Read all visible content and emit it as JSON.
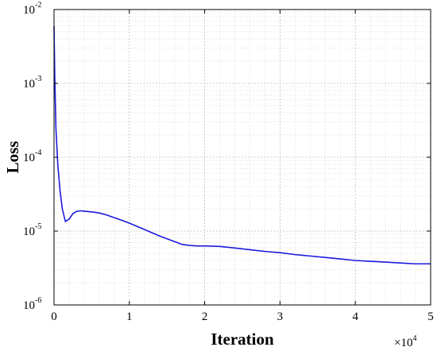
{
  "chart_data": {
    "type": "line",
    "title": "",
    "xlabel": "Iteration",
    "ylabel": "Loss",
    "x_multiplier_label": "×10",
    "x_multiplier_exponent": "4",
    "xlim": [
      0,
      50000
    ],
    "ylim": [
      1e-06,
      0.01
    ],
    "yscale": "log",
    "grid": true,
    "minor_grid": true,
    "line_color": "#1a1adc",
    "x_ticks": [
      {
        "value": 0,
        "label": "0"
      },
      {
        "value": 10000,
        "label": "1"
      },
      {
        "value": 20000,
        "label": "2"
      },
      {
        "value": 30000,
        "label": "3"
      },
      {
        "value": 40000,
        "label": "4"
      },
      {
        "value": 50000,
        "label": "5"
      }
    ],
    "y_ticks": [
      {
        "value": 1e-06,
        "base": "10",
        "exp": "-6"
      },
      {
        "value": 1e-05,
        "base": "10",
        "exp": "-5"
      },
      {
        "value": 0.0001,
        "base": "10",
        "exp": "-4"
      },
      {
        "value": 0.001,
        "base": "10",
        "exp": "-3"
      },
      {
        "value": 0.01,
        "base": "10",
        "exp": "-2"
      }
    ],
    "series": [
      {
        "x": [
          0,
          100,
          250,
          500,
          800,
          1100,
          1500,
          2000,
          2500,
          3000,
          3500,
          4000,
          5000,
          6000,
          7000,
          8000,
          9000,
          10000,
          12000,
          14000,
          16000,
          17000,
          18000,
          19000,
          20000,
          22000,
          24000,
          26000,
          28000,
          30000,
          32000,
          34000,
          36000,
          38000,
          40000,
          42000,
          44000,
          46000,
          48000,
          50000
        ],
        "y": [
          0.006,
          0.0012,
          0.00025,
          8e-05,
          3.5e-05,
          2e-05,
          1.35e-05,
          1.45e-05,
          1.72e-05,
          1.85e-05,
          1.88e-05,
          1.86e-05,
          1.82e-05,
          1.76e-05,
          1.65e-05,
          1.52e-05,
          1.4e-05,
          1.28e-05,
          1.05e-05,
          8.6e-06,
          7.2e-06,
          6.6e-06,
          6.4e-06,
          6.3e-06,
          6.3e-06,
          6.2e-06,
          5.9e-06,
          5.6e-06,
          5.3e-06,
          5.1e-06,
          4.8e-06,
          4.6e-06,
          4.4e-06,
          4.2e-06,
          4e-06,
          3.9e-06,
          3.8e-06,
          3.7e-06,
          3.6e-06,
          3.6e-06
        ]
      }
    ]
  }
}
